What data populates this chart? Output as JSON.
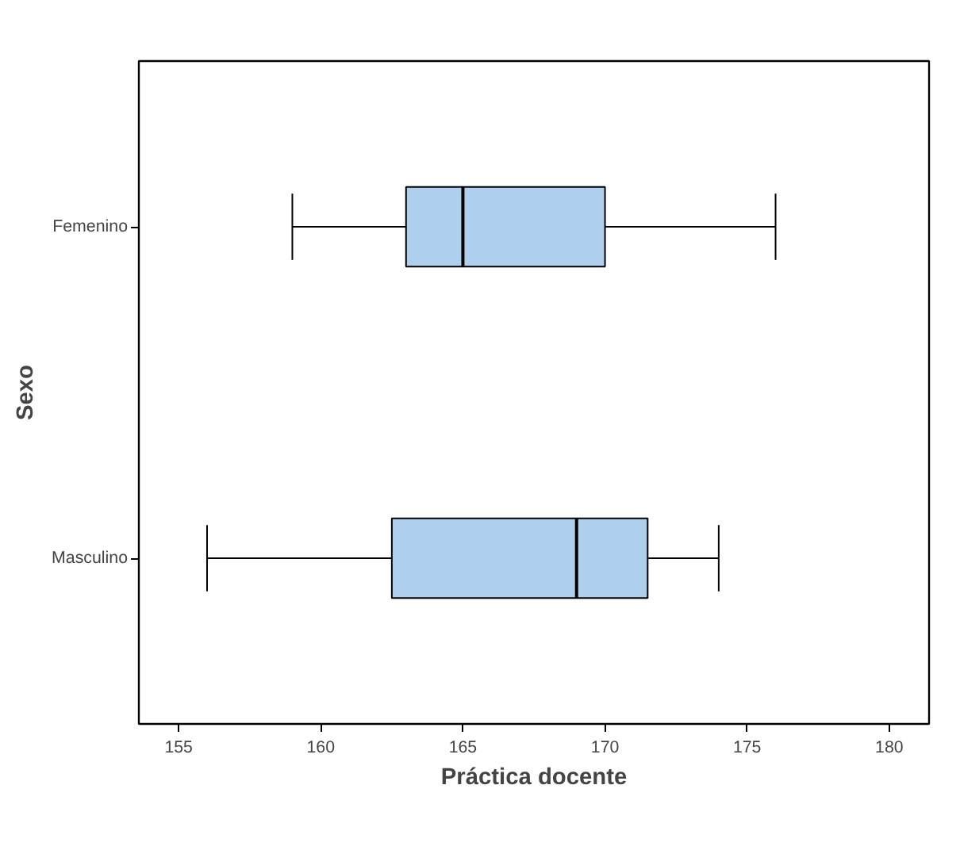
{
  "chart_data": {
    "type": "box",
    "orientation": "horizontal",
    "xlabel": "Práctica docente",
    "ylabel": "Sexo",
    "categories": [
      "Femenino",
      "Masculino"
    ],
    "boxes": [
      {
        "low": 159,
        "q1": 163,
        "median": 165,
        "q3": 170,
        "high": 176
      },
      {
        "low": 156,
        "q1": 162.5,
        "median": 169,
        "q3": 171.5,
        "high": 174
      }
    ],
    "color": "#aecfee",
    "xlim": [
      153.6,
      181.4
    ],
    "xticks": [
      155,
      160,
      165,
      170,
      175,
      180
    ],
    "grid": false
  }
}
